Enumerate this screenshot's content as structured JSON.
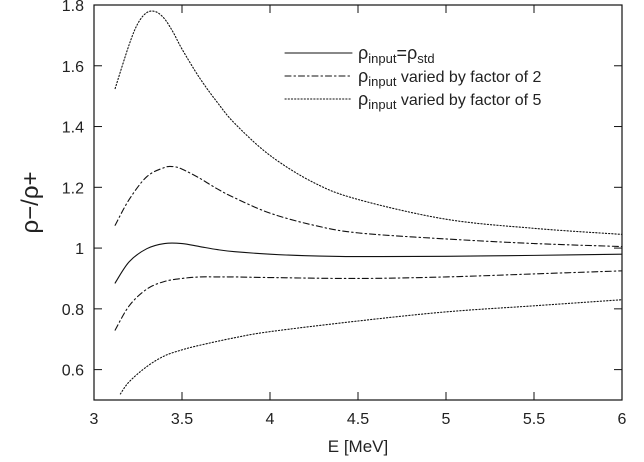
{
  "chart_data": {
    "type": "line",
    "xlabel": "E [MeV]",
    "ylabel": "ρ−/ρ+",
    "xlim": [
      3,
      6
    ],
    "ylim": [
      0.5,
      1.8
    ],
    "x_ticks": [
      "3",
      "3.5",
      "4",
      "4.5",
      "5",
      "5.5",
      "6"
    ],
    "y_ticks": [
      "0.6",
      "0.8",
      "1",
      "1.2",
      "1.4",
      "1.6",
      "1.8"
    ],
    "grid": false,
    "legend_position": "top-right",
    "series": [
      {
        "legend": {
          "main": "ρ",
          "sub": "input",
          "mid": "=ρ",
          "sub2": "std",
          "rest": ""
        },
        "style": "solid",
        "x": [
          3.12,
          3.2,
          3.3,
          3.4,
          3.5,
          3.6,
          3.7,
          3.8,
          4.0,
          4.2,
          4.5,
          5.0,
          5.5,
          6.0
        ],
        "y": [
          0.885,
          0.955,
          0.998,
          1.015,
          1.015,
          1.005,
          0.995,
          0.988,
          0.98,
          0.975,
          0.972,
          0.973,
          0.976,
          0.98
        ]
      },
      {
        "legend": {
          "main": "ρ",
          "sub": "input",
          "mid": "",
          "sub2": "",
          "rest": " varied by factor of 2"
        },
        "style": "dashdot",
        "x": [
          3.12,
          3.2,
          3.3,
          3.4,
          3.45,
          3.5,
          3.6,
          3.7,
          3.8,
          4.0,
          4.25,
          4.5,
          5.0,
          5.5,
          6.0
        ],
        "y": [
          1.075,
          1.16,
          1.235,
          1.265,
          1.268,
          1.26,
          1.23,
          1.195,
          1.165,
          1.115,
          1.075,
          1.05,
          1.03,
          1.015,
          1.005
        ]
      },
      {
        "legend": {
          "main": "ρ",
          "sub": "input",
          "mid": "",
          "sub2": "",
          "rest": " varied by factor of 2"
        },
        "style": "dashdot",
        "x": [
          3.12,
          3.2,
          3.3,
          3.4,
          3.5,
          3.6,
          3.7,
          3.8,
          4.0,
          4.5,
          5.0,
          5.5,
          6.0
        ],
        "y": [
          0.73,
          0.81,
          0.865,
          0.89,
          0.9,
          0.905,
          0.905,
          0.905,
          0.903,
          0.9,
          0.905,
          0.915,
          0.925
        ]
      },
      {
        "legend": {
          "main": "ρ",
          "sub": "input",
          "mid": "",
          "sub2": "",
          "rest": " varied by factor of 5"
        },
        "style": "dotted",
        "x": [
          3.12,
          3.2,
          3.25,
          3.3,
          3.35,
          3.4,
          3.45,
          3.5,
          3.6,
          3.7,
          3.8,
          4.0,
          4.25,
          4.5,
          5.0,
          5.5,
          6.0
        ],
        "y": [
          1.525,
          1.67,
          1.74,
          1.775,
          1.778,
          1.755,
          1.71,
          1.655,
          1.56,
          1.48,
          1.41,
          1.305,
          1.215,
          1.16,
          1.095,
          1.065,
          1.045
        ]
      },
      {
        "legend": {
          "main": "ρ",
          "sub": "input",
          "mid": "",
          "sub2": "",
          "rest": " varied by factor of 5"
        },
        "style": "dotted",
        "x": [
          3.15,
          3.2,
          3.3,
          3.4,
          3.5,
          3.6,
          3.8,
          4.0,
          4.5,
          5.0,
          5.5,
          6.0
        ],
        "y": [
          0.52,
          0.56,
          0.61,
          0.645,
          0.665,
          0.68,
          0.705,
          0.725,
          0.76,
          0.79,
          0.81,
          0.83
        ]
      }
    ],
    "legend_entries": [
      {
        "main": "ρ",
        "sub": "input",
        "mid": "=ρ",
        "sub2": "std",
        "rest": "",
        "style": "solid"
      },
      {
        "main": "ρ",
        "sub": "input",
        "mid": "",
        "sub2": "",
        "rest": " varied by factor of 2",
        "style": "dashdot"
      },
      {
        "main": "ρ",
        "sub": "input",
        "mid": "",
        "sub2": "",
        "rest": " varied by factor of 5",
        "style": "dotted"
      }
    ]
  }
}
